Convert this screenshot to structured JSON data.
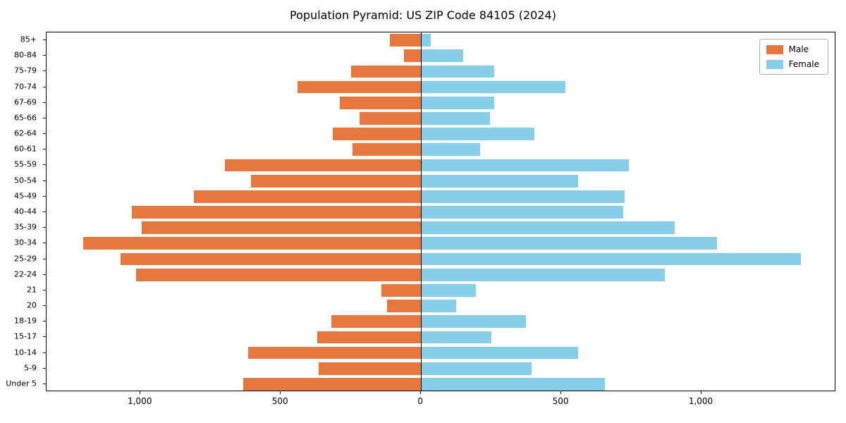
{
  "title": "Population Pyramid: US ZIP Code 84105 (2024)",
  "legend": {
    "male_label": "Male",
    "female_label": "Female"
  },
  "colors": {
    "male": "#e8773d",
    "female": "#87ceeb",
    "axis": "#000000",
    "background": "#ffffff",
    "legend_border": "#b0b0b0"
  },
  "chart_data": {
    "type": "bar",
    "variant": "population-pyramid",
    "title": "Population Pyramid: US ZIP Code 84105 (2024)",
    "grid": false,
    "legend_position": "upper-right",
    "legend_entries": [
      "Male",
      "Female"
    ],
    "categories_top_to_bottom": [
      "85+",
      "80-84",
      "75-79",
      "70-74",
      "67-69",
      "65-66",
      "62-64",
      "60-61",
      "55-59",
      "50-54",
      "45-49",
      "40-44",
      "35-39",
      "30-34",
      "25-29",
      "22-24",
      "21",
      "20",
      "18-19",
      "15-17",
      "10-14",
      "5-9",
      "Under 5"
    ],
    "series": [
      {
        "name": "Male",
        "side": "left",
        "color": "#e8773d",
        "values": [
          110,
          60,
          250,
          440,
          290,
          220,
          315,
          245,
          700,
          605,
          810,
          1030,
          995,
          1205,
          1070,
          1015,
          140,
          120,
          320,
          370,
          615,
          365,
          635
        ]
      },
      {
        "name": "Female",
        "side": "right",
        "color": "#87ceeb",
        "values": [
          35,
          150,
          260,
          515,
          260,
          245,
          405,
          210,
          740,
          560,
          725,
          720,
          905,
          1055,
          1355,
          870,
          195,
          125,
          375,
          250,
          560,
          395,
          655
        ]
      }
    ],
    "xlim": [
      -1335,
      1480
    ],
    "x_ticks": [
      {
        "value": -1000,
        "label": "1,000"
      },
      {
        "value": -500,
        "label": "500"
      },
      {
        "value": 0,
        "label": "0"
      },
      {
        "value": 500,
        "label": "500"
      },
      {
        "value": 1000,
        "label": "1,000"
      }
    ],
    "bar_relative_height": 0.8
  }
}
